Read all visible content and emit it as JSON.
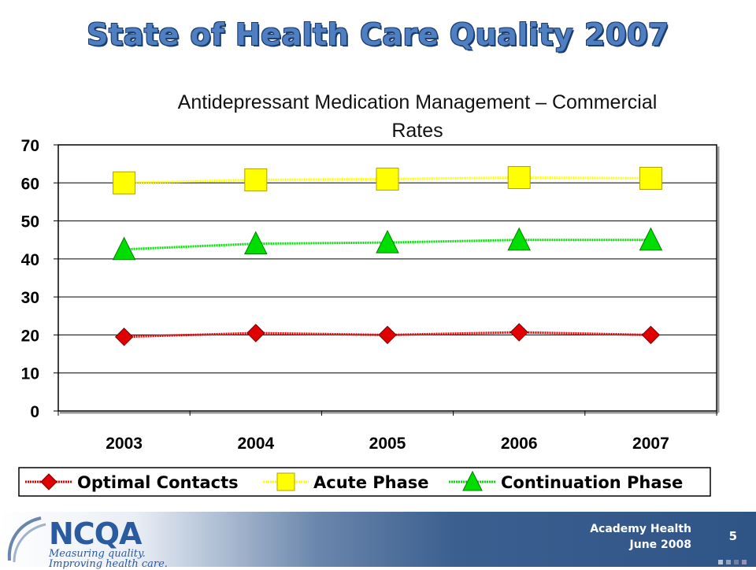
{
  "title": "State of Health Care Quality 2007",
  "subtitle": "Antidepressant Medication Management – Commercial Rates",
  "chart_data": {
    "type": "line",
    "categories": [
      "2003",
      "2004",
      "2005",
      "2006",
      "2007"
    ],
    "ylim": [
      0,
      70
    ],
    "yticks": [
      0,
      10,
      20,
      30,
      40,
      50,
      60,
      70
    ],
    "grid": true,
    "legend_position": "bottom",
    "series": [
      {
        "name": "Optimal Contacts",
        "values": [
          19.5,
          20.5,
          20.0,
          20.7,
          20.0
        ],
        "color": "#e00000",
        "marker": "diamond"
      },
      {
        "name": "Acute Phase",
        "values": [
          60.0,
          60.8,
          61.0,
          61.4,
          61.2
        ],
        "color": "#ffff00",
        "marker": "square"
      },
      {
        "name": "Continuation Phase",
        "values": [
          42.5,
          44.0,
          44.3,
          45.0,
          45.0
        ],
        "color": "#00dd00",
        "marker": "triangle"
      }
    ]
  },
  "footer": {
    "logo_text": "NCQA",
    "tagline_1": "Measuring quality.",
    "tagline_2": "Improving health care.",
    "organization": "Academy Health",
    "date": "June 2008",
    "page_number": "5"
  }
}
